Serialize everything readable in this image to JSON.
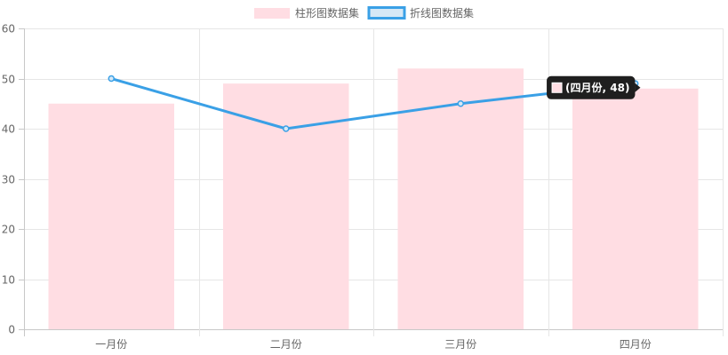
{
  "legend": {
    "bar_label": "柱形图数据集",
    "line_label": "折线图数据集"
  },
  "tooltip": {
    "text": "(四月份, 48)",
    "series": "bar",
    "category_index": 3
  },
  "colors": {
    "bar_fill": "#ffdde3",
    "line": "#3aa0e6",
    "line_point_fill": "#d6e8f6",
    "grid": "#e6e6e6",
    "axis": "#c8c8c8",
    "tooltip_bg": "#1f1f1f"
  },
  "chart_data": {
    "type": "bar",
    "categories": [
      "一月份",
      "二月份",
      "三月份",
      "四月份"
    ],
    "series": [
      {
        "name": "柱形图数据集",
        "type": "bar",
        "values": [
          45,
          49,
          52,
          48
        ]
      },
      {
        "name": "折线图数据集",
        "type": "line",
        "values": [
          50,
          40,
          45,
          49
        ]
      }
    ],
    "ylim": [
      0,
      60
    ],
    "yticks": [
      0,
      10,
      20,
      30,
      40,
      50,
      60
    ],
    "grid": true,
    "legend_position": "top-center",
    "title": "",
    "xlabel": "",
    "ylabel": ""
  }
}
